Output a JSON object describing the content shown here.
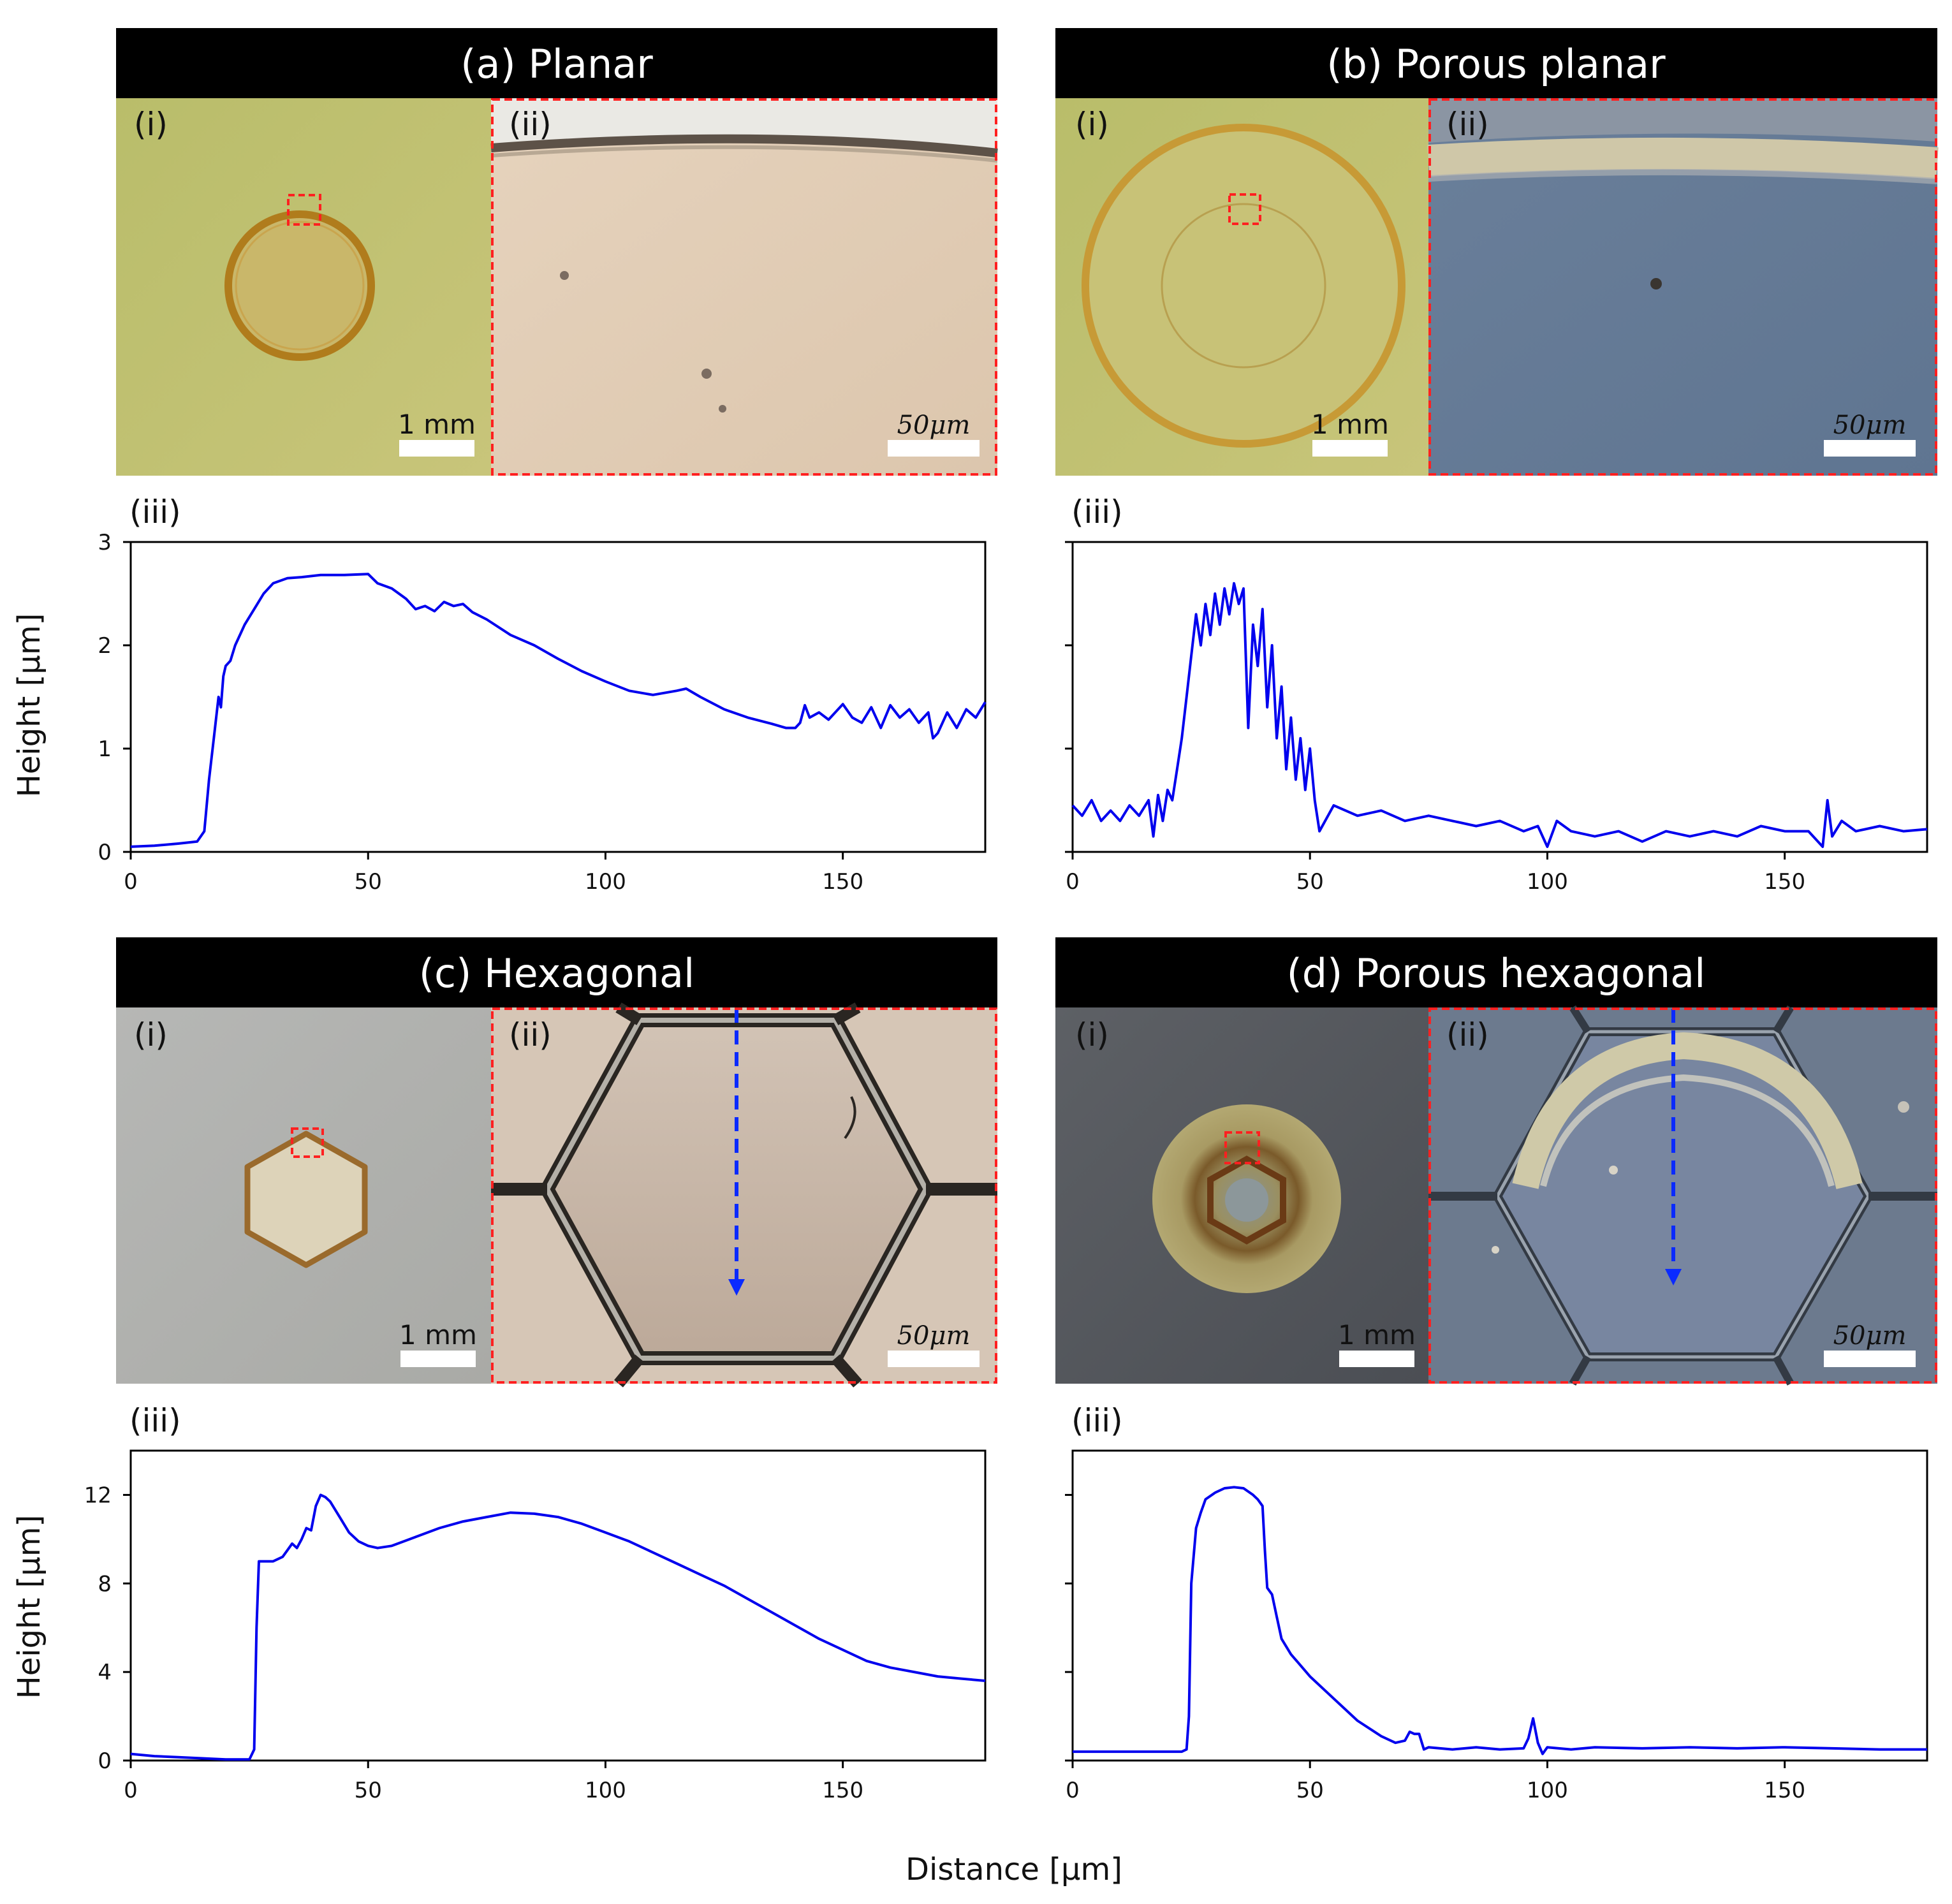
{
  "figure": {
    "x_axis_title": "Distance [μm]",
    "y_axis_title": "Height [μm]",
    "panels": [
      {
        "id": "a",
        "title": "(a) Planar",
        "sub_i": "(i)",
        "sub_ii": "(ii)",
        "sub_iii": "(iii)",
        "scale_i": "1 mm",
        "scale_ii": "50μm"
      },
      {
        "id": "b",
        "title": "(b) Porous planar",
        "sub_i": "(i)",
        "sub_ii": "(ii)",
        "sub_iii": "(iii)",
        "scale_i": "1 mm",
        "scale_ii": "50μm"
      },
      {
        "id": "c",
        "title": "(c) Hexagonal",
        "sub_i": "(i)",
        "sub_ii": "(ii)",
        "sub_iii": "(iii)",
        "scale_i": "1 mm",
        "scale_ii": "50μm"
      },
      {
        "id": "d",
        "title": "(d) Porous hexagonal",
        "sub_i": "(i)",
        "sub_ii": "(ii)",
        "sub_iii": "(iii)",
        "scale_i": "1 mm",
        "scale_ii": "50μm"
      }
    ]
  },
  "chart_data": [
    {
      "panel": "a",
      "type": "line",
      "title": "(a) Planar (iii)",
      "xlabel": "Distance [μm]",
      "ylabel": "Height [μm]",
      "xlim": [
        0,
        180
      ],
      "ylim": [
        0,
        3
      ],
      "xticks": [
        0,
        50,
        100,
        150
      ],
      "yticks": [
        0,
        1,
        2,
        3
      ],
      "series": [
        {
          "name": "height profile",
          "color": "#0000ee",
          "x": [
            0,
            5,
            10,
            14,
            15.5,
            16.5,
            17.5,
            18.5,
            19,
            19.5,
            20,
            21,
            22,
            24,
            26,
            28,
            30,
            33,
            36,
            40,
            45,
            50,
            52,
            55,
            58,
            60,
            62,
            64,
            66,
            68,
            70,
            72,
            75,
            80,
            85,
            90,
            95,
            100,
            105,
            110,
            115,
            117,
            120,
            125,
            130,
            135,
            138,
            140,
            141,
            142,
            143,
            145,
            147,
            150,
            152,
            154,
            156,
            158,
            160,
            162,
            164,
            166,
            168,
            169,
            170,
            172,
            174,
            176,
            178,
            180
          ],
          "y": [
            0.05,
            0.06,
            0.08,
            0.1,
            0.2,
            0.7,
            1.1,
            1.5,
            1.4,
            1.7,
            1.8,
            1.85,
            2.0,
            2.2,
            2.35,
            2.5,
            2.6,
            2.65,
            2.66,
            2.68,
            2.68,
            2.69,
            2.6,
            2.55,
            2.45,
            2.35,
            2.38,
            2.33,
            2.42,
            2.38,
            2.4,
            2.32,
            2.25,
            2.1,
            2.0,
            1.87,
            1.75,
            1.65,
            1.56,
            1.52,
            1.56,
            1.58,
            1.5,
            1.38,
            1.3,
            1.24,
            1.2,
            1.2,
            1.25,
            1.42,
            1.3,
            1.35,
            1.28,
            1.43,
            1.3,
            1.25,
            1.4,
            1.2,
            1.42,
            1.3,
            1.38,
            1.25,
            1.35,
            1.1,
            1.15,
            1.35,
            1.2,
            1.38,
            1.3,
            1.45
          ]
        }
      ]
    },
    {
      "panel": "b",
      "type": "line",
      "title": "(b) Porous planar (iii)",
      "xlabel": "Distance [μm]",
      "ylabel": "Height [μm]",
      "xlim": [
        0,
        180
      ],
      "ylim": [
        0,
        3
      ],
      "xticks": [
        0,
        50,
        100,
        150
      ],
      "yticks": [
        0,
        1,
        2,
        3
      ],
      "series": [
        {
          "name": "height profile",
          "color": "#0000ee",
          "x": [
            0,
            2,
            4,
            6,
            8,
            10,
            12,
            14,
            16,
            17,
            18,
            19,
            20,
            21,
            22,
            23,
            24,
            25,
            26,
            27,
            28,
            29,
            30,
            31,
            32,
            33,
            34,
            35,
            36,
            37,
            38,
            39,
            40,
            41,
            42,
            43,
            44,
            45,
            46,
            47,
            48,
            49,
            50,
            51,
            52,
            55,
            60,
            65,
            70,
            75,
            80,
            85,
            90,
            95,
            98,
            100,
            102,
            105,
            110,
            115,
            120,
            125,
            130,
            135,
            140,
            145,
            150,
            155,
            158,
            159,
            160,
            162,
            165,
            170,
            175,
            180
          ],
          "y": [
            0.45,
            0.35,
            0.5,
            0.3,
            0.4,
            0.3,
            0.45,
            0.35,
            0.5,
            0.15,
            0.55,
            0.3,
            0.6,
            0.5,
            0.8,
            1.1,
            1.5,
            1.9,
            2.3,
            2.0,
            2.4,
            2.1,
            2.5,
            2.2,
            2.55,
            2.3,
            2.6,
            2.4,
            2.55,
            1.2,
            2.2,
            1.8,
            2.35,
            1.4,
            2.0,
            1.1,
            1.6,
            0.8,
            1.3,
            0.7,
            1.1,
            0.6,
            1.0,
            0.5,
            0.2,
            0.45,
            0.35,
            0.4,
            0.3,
            0.35,
            0.3,
            0.25,
            0.3,
            0.2,
            0.25,
            0.05,
            0.3,
            0.2,
            0.15,
            0.2,
            0.1,
            0.2,
            0.15,
            0.2,
            0.15,
            0.25,
            0.2,
            0.2,
            0.05,
            0.5,
            0.15,
            0.3,
            0.2,
            0.25,
            0.2,
            0.22
          ]
        }
      ]
    },
    {
      "panel": "c",
      "type": "line",
      "title": "(c) Hexagonal (iii)",
      "xlabel": "Distance [μm]",
      "ylabel": "Height [μm]",
      "xlim": [
        0,
        180
      ],
      "ylim": [
        0,
        14
      ],
      "xticks": [
        0,
        50,
        100,
        150
      ],
      "yticks": [
        0,
        4,
        8,
        12
      ],
      "series": [
        {
          "name": "height profile",
          "color": "#0000ee",
          "x": [
            0,
            5,
            10,
            15,
            20,
            25,
            26,
            26.5,
            27,
            28,
            30,
            32,
            33,
            34,
            35,
            36,
            37,
            38,
            39,
            40,
            41,
            42,
            44,
            46,
            48,
            50,
            52,
            55,
            60,
            65,
            70,
            75,
            80,
            85,
            90,
            95,
            100,
            105,
            110,
            115,
            120,
            125,
            130,
            135,
            140,
            145,
            150,
            155,
            160,
            165,
            170,
            175,
            180
          ],
          "y": [
            0.3,
            0.2,
            0.15,
            0.1,
            0.05,
            0.05,
            0.5,
            6.0,
            9.0,
            9.0,
            9.0,
            9.2,
            9.5,
            9.8,
            9.6,
            10.0,
            10.5,
            10.4,
            11.5,
            12.0,
            11.9,
            11.7,
            11.0,
            10.3,
            9.9,
            9.7,
            9.6,
            9.7,
            10.1,
            10.5,
            10.8,
            11.0,
            11.2,
            11.15,
            11.0,
            10.7,
            10.3,
            9.9,
            9.4,
            8.9,
            8.4,
            7.9,
            7.3,
            6.7,
            6.1,
            5.5,
            5.0,
            4.5,
            4.2,
            4.0,
            3.8,
            3.7,
            3.6
          ]
        }
      ]
    },
    {
      "panel": "d",
      "type": "line",
      "title": "(d) Porous hexagonal (iii)",
      "xlabel": "Distance [μm]",
      "ylabel": "Height [μm]",
      "xlim": [
        0,
        180
      ],
      "ylim": [
        0,
        14
      ],
      "xticks": [
        0,
        50,
        100,
        150
      ],
      "yticks": [
        0,
        4,
        8,
        12
      ],
      "series": [
        {
          "name": "height profile",
          "color": "#0000ee",
          "x": [
            0,
            10,
            20,
            23,
            24,
            24.5,
            25,
            26,
            27,
            28,
            30,
            32,
            34,
            36,
            38,
            39,
            40,
            40.5,
            41,
            42,
            43,
            44,
            46,
            48,
            50,
            55,
            60,
            65,
            68,
            70,
            71,
            72,
            73,
            74,
            75,
            80,
            85,
            90,
            95,
            96,
            97,
            98,
            99,
            100,
            105,
            110,
            120,
            130,
            140,
            150,
            160,
            170,
            180
          ],
          "y": [
            0.4,
            0.4,
            0.4,
            0.4,
            0.5,
            2.0,
            8.0,
            10.5,
            11.2,
            11.8,
            12.1,
            12.3,
            12.35,
            12.3,
            12.0,
            11.8,
            11.5,
            9.5,
            7.8,
            7.5,
            6.5,
            5.5,
            4.8,
            4.3,
            3.8,
            2.8,
            1.8,
            1.1,
            0.8,
            0.9,
            1.3,
            1.2,
            1.2,
            0.5,
            0.6,
            0.5,
            0.6,
            0.5,
            0.55,
            1.0,
            1.9,
            0.8,
            0.3,
            0.6,
            0.5,
            0.6,
            0.55,
            0.6,
            0.55,
            0.6,
            0.55,
            0.5,
            0.5
          ]
        }
      ]
    }
  ]
}
